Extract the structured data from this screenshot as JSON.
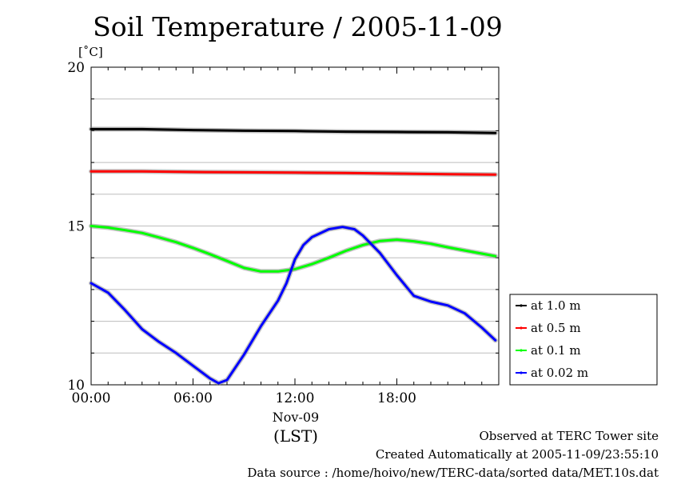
{
  "chart_data": {
    "type": "line",
    "title": "Soil Temperature / 2005-11-09",
    "ylabel": "[˚C]",
    "xlabel": "(LST)",
    "date_label": "Nov-09",
    "ylim": [
      10,
      20
    ],
    "xlim": [
      0,
      24
    ],
    "y_ticks": [
      10,
      15,
      20
    ],
    "x_ticks": [
      0,
      6,
      12,
      18
    ],
    "x_tick_labels": [
      "00:00",
      "06:00",
      "12:00",
      "18:00"
    ],
    "grid": true,
    "legend_position": "right",
    "series": [
      {
        "name": "at 1.0 m",
        "color": "#000000",
        "points": [
          [
            0,
            18.05
          ],
          [
            3,
            18.05
          ],
          [
            6,
            18.02
          ],
          [
            9,
            18.0
          ],
          [
            12,
            17.99
          ],
          [
            15,
            17.97
          ],
          [
            18,
            17.96
          ],
          [
            21,
            17.95
          ],
          [
            23.8,
            17.93
          ]
        ]
      },
      {
        "name": "at 0.5 m",
        "color": "#ff0000",
        "points": [
          [
            0,
            16.72
          ],
          [
            3,
            16.72
          ],
          [
            6,
            16.7
          ],
          [
            9,
            16.69
          ],
          [
            12,
            16.68
          ],
          [
            15,
            16.67
          ],
          [
            18,
            16.65
          ],
          [
            21,
            16.63
          ],
          [
            23.8,
            16.62
          ]
        ]
      },
      {
        "name": "at 0.1 m",
        "color": "#00ff00",
        "points": [
          [
            0,
            15.0
          ],
          [
            1,
            14.95
          ],
          [
            2,
            14.87
          ],
          [
            3,
            14.78
          ],
          [
            4,
            14.64
          ],
          [
            5,
            14.49
          ],
          [
            6,
            14.31
          ],
          [
            7,
            14.11
          ],
          [
            8,
            13.9
          ],
          [
            9,
            13.68
          ],
          [
            10,
            13.57
          ],
          [
            11,
            13.57
          ],
          [
            12,
            13.64
          ],
          [
            13,
            13.8
          ],
          [
            14,
            14.0
          ],
          [
            15,
            14.22
          ],
          [
            16,
            14.4
          ],
          [
            17,
            14.53
          ],
          [
            18,
            14.57
          ],
          [
            19,
            14.52
          ],
          [
            20,
            14.44
          ],
          [
            21,
            14.33
          ],
          [
            22,
            14.23
          ],
          [
            23,
            14.13
          ],
          [
            23.8,
            14.05
          ]
        ]
      },
      {
        "name": "at 0.02 m",
        "color": "#0000ff",
        "points": [
          [
            0,
            13.2
          ],
          [
            1,
            12.9
          ],
          [
            2,
            12.35
          ],
          [
            3,
            11.75
          ],
          [
            4,
            11.35
          ],
          [
            5,
            11.0
          ],
          [
            6,
            10.6
          ],
          [
            7,
            10.2
          ],
          [
            7.5,
            10.05
          ],
          [
            8,
            10.15
          ],
          [
            9,
            10.95
          ],
          [
            10,
            11.85
          ],
          [
            11,
            12.65
          ],
          [
            11.5,
            13.2
          ],
          [
            12,
            13.95
          ],
          [
            12.5,
            14.4
          ],
          [
            13,
            14.65
          ],
          [
            14,
            14.9
          ],
          [
            14.8,
            14.97
          ],
          [
            15.5,
            14.9
          ],
          [
            16,
            14.7
          ],
          [
            17,
            14.15
          ],
          [
            18,
            13.45
          ],
          [
            19,
            12.8
          ],
          [
            20,
            12.62
          ],
          [
            21,
            12.5
          ],
          [
            22,
            12.25
          ],
          [
            23,
            11.8
          ],
          [
            23.8,
            11.4
          ]
        ]
      }
    ]
  },
  "footer": {
    "line1": "Observed at TERC Tower site",
    "line2": "Created Automatically at 2005-11-09/23:55:10",
    "line3": "Data source : /home/hoivo/new/TERC-data/sorted  data/MET.10s.dat"
  }
}
